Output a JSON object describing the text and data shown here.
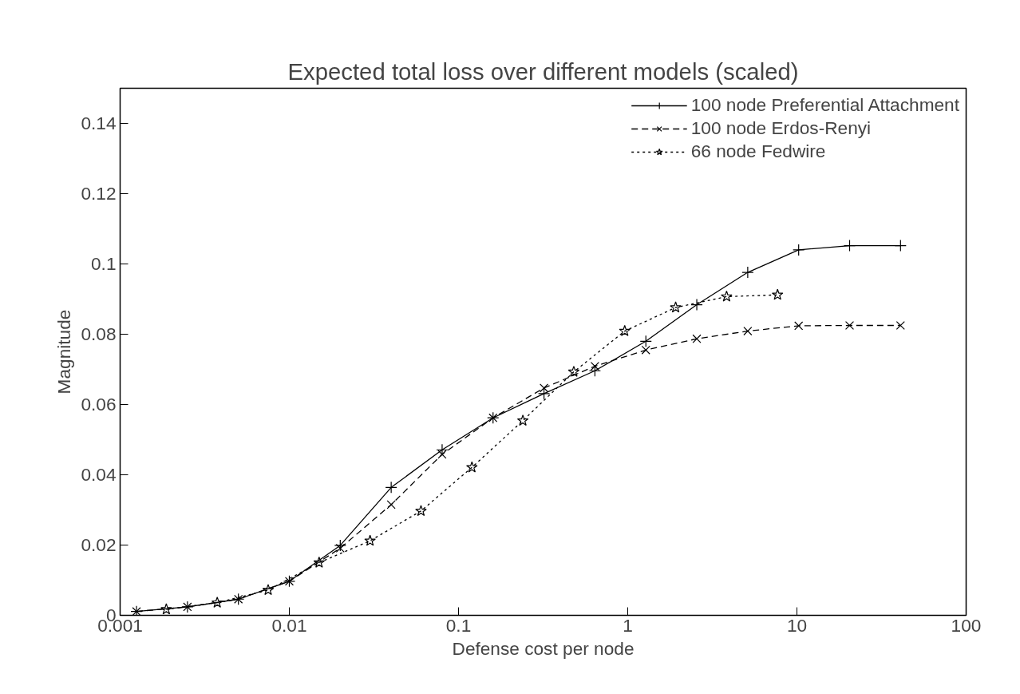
{
  "chart_data": {
    "type": "line",
    "title": "Expected total loss over different models (scaled)",
    "xlabel": "Defense cost per node",
    "ylabel": "Magnitude",
    "log": "x",
    "xlim": [
      0.001,
      100
    ],
    "xticks": [
      0.001,
      0.01,
      0.1,
      1,
      10,
      100
    ],
    "ylim": [
      0,
      0.15
    ],
    "yticks": [
      0,
      0.02,
      0.04,
      0.06,
      0.08,
      0.1,
      0.12,
      0.14
    ],
    "grid": false,
    "legend": "top right",
    "series": [
      {
        "name": "100 node Preferential Attachment",
        "color": "#000000",
        "marker": "cross",
        "line_style": "solid",
        "x": [
          0.00125,
          0.0025,
          0.005,
          0.01,
          0.02,
          0.04,
          0.08,
          0.16,
          0.32,
          0.64,
          1.28,
          2.56,
          5.12,
          10.24,
          20.48,
          40.96
        ],
        "values": [
          0.0011,
          0.0024,
          0.0046,
          0.0097,
          0.0199,
          0.0364,
          0.0471,
          0.0562,
          0.0631,
          0.0696,
          0.078,
          0.0884,
          0.0976,
          0.104,
          0.1052,
          0.1052
        ]
      },
      {
        "name": "100 node Erdos-Renyi",
        "color": "#000000",
        "marker": "x",
        "line_style": "dashed",
        "x": [
          0.00125,
          0.0025,
          0.005,
          0.01,
          0.02,
          0.04,
          0.08,
          0.16,
          0.32,
          0.64,
          1.28,
          2.56,
          5.12,
          10.24,
          20.48,
          40.96
        ],
        "values": [
          0.0011,
          0.0024,
          0.0046,
          0.0097,
          0.0191,
          0.0315,
          0.0458,
          0.0562,
          0.0647,
          0.0709,
          0.0755,
          0.0787,
          0.0809,
          0.0824,
          0.0825,
          0.0825
        ]
      },
      {
        "name": "66 node Fedwire",
        "color": "#000000",
        "marker": "star",
        "line_style": "dotted",
        "x": [
          0.001875,
          0.00375,
          0.0075,
          0.015,
          0.03,
          0.06,
          0.12,
          0.24,
          0.48,
          0.96,
          1.92,
          3.84,
          7.68
        ],
        "values": [
          0.0017,
          0.0036,
          0.0072,
          0.015,
          0.0212,
          0.0297,
          0.0421,
          0.0554,
          0.0693,
          0.0809,
          0.0876,
          0.0907,
          0.0912
        ]
      }
    ]
  }
}
